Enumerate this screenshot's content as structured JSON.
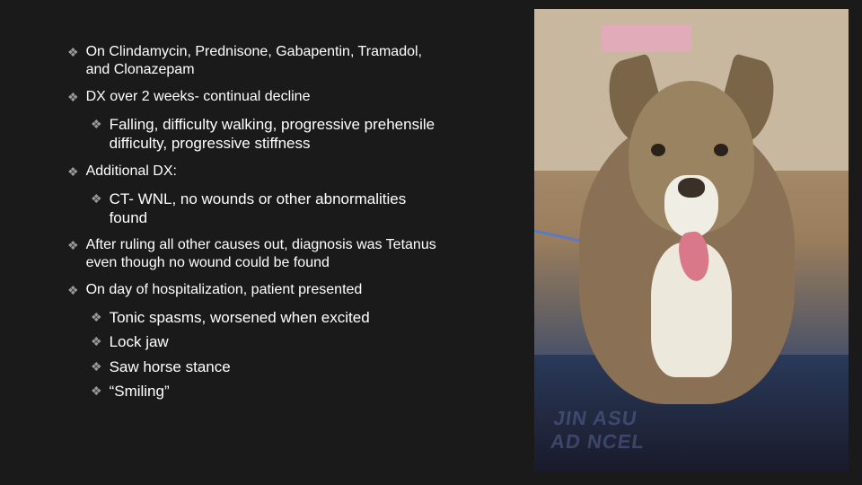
{
  "bullets": [
    {
      "text": "On Clindamycin, Prednisone, Gabapentin, Tramadol, and Clonazepam",
      "subs": []
    },
    {
      "text": "DX over 2 weeks- continual decline",
      "subs": [
        "Falling, difficulty walking, progressive prehensile difficulty, progressive stiffness"
      ]
    },
    {
      "text": "Additional DX:",
      "subs": [
        "CT- WNL, no wounds or other abnormalities found"
      ]
    },
    {
      "text": "After ruling all other causes out, diagnosis was Tetanus even though no wound could be found",
      "subs": []
    },
    {
      "text": "On day of hospitalization, patient presented",
      "subs": [
        " Tonic spasms, worsened when excited",
        "Lock jaw",
        "Saw horse stance",
        "“Smiling”"
      ]
    }
  ],
  "glyph": "❖",
  "colors": {
    "background": "#1a1a1a",
    "text": "#ffffff",
    "bullet_glyph": "#9a9a9a"
  },
  "typography": {
    "main_fontsize": 16,
    "sub_fontsize": 17,
    "font_family": "Arial"
  }
}
